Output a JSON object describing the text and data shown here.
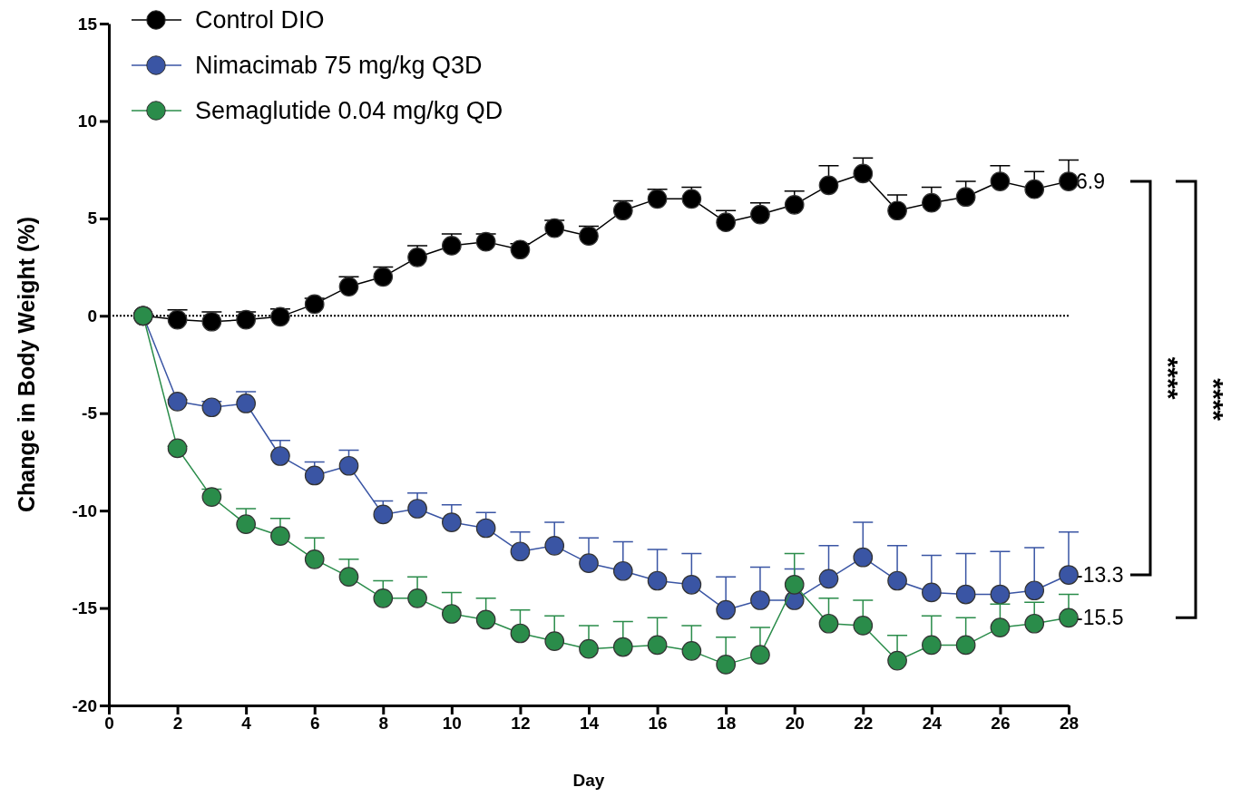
{
  "chart_data": {
    "type": "line",
    "xlabel": "Day",
    "ylabel": "Change in Body Weight  (%)",
    "x": [
      1,
      2,
      3,
      4,
      5,
      6,
      7,
      8,
      9,
      10,
      11,
      12,
      13,
      14,
      15,
      16,
      17,
      18,
      19,
      20,
      21,
      22,
      23,
      24,
      25,
      26,
      27,
      28
    ],
    "xlim": [
      0,
      28
    ],
    "xticks": [
      0,
      2,
      4,
      6,
      8,
      10,
      12,
      14,
      16,
      18,
      20,
      22,
      24,
      26,
      28
    ],
    "ylim": [
      -20,
      15
    ],
    "yticks": [
      -20,
      -15,
      -10,
      -5,
      0,
      5,
      10,
      15
    ],
    "marker": "circle",
    "legend": "top left",
    "grid": false,
    "series": [
      {
        "name": "Control DIO",
        "color": "#000000",
        "values": [
          0,
          -0.2,
          -0.3,
          -0.2,
          -0.05,
          0.6,
          1.5,
          2.0,
          3.0,
          3.6,
          3.8,
          3.4,
          4.5,
          4.1,
          5.4,
          6.0,
          6.0,
          4.8,
          5.2,
          5.7,
          6.7,
          7.3,
          5.4,
          5.8,
          6.1,
          6.9,
          6.5,
          6.9
        ],
        "value_labels": [
          null,
          null,
          null,
          null,
          null,
          null,
          null,
          null,
          null,
          null,
          null,
          null,
          null,
          null,
          null,
          null,
          null,
          null,
          null,
          null,
          null,
          null,
          null,
          null,
          null,
          null,
          null,
          "6.9"
        ],
        "errors": [
          null,
          [
            -0.2,
            0.3
          ],
          [
            -0.3,
            0.2
          ],
          [
            -0.2,
            0.2
          ],
          [
            -0.05,
            0.35
          ],
          [
            0.6,
            0.9
          ],
          [
            1.5,
            2.0
          ],
          [
            2.0,
            2.5
          ],
          [
            3.0,
            3.6
          ],
          [
            3.6,
            4.2
          ],
          [
            3.8,
            4.2
          ],
          [
            3.4,
            3.7
          ],
          [
            4.5,
            4.9
          ],
          [
            4.1,
            4.6
          ],
          [
            5.4,
            5.9
          ],
          [
            6.0,
            6.5
          ],
          [
            6.0,
            6.6
          ],
          [
            4.8,
            5.4
          ],
          [
            5.2,
            5.8
          ],
          [
            5.7,
            6.4
          ],
          [
            6.7,
            7.7
          ],
          [
            7.3,
            8.1
          ],
          [
            5.4,
            6.2
          ],
          [
            5.8,
            6.6
          ],
          [
            6.1,
            6.9
          ],
          [
            6.9,
            7.7
          ],
          [
            6.5,
            7.4
          ],
          [
            6.9,
            8.0
          ]
        ]
      },
      {
        "name": "Nimacimab 75 mg/kg Q3D",
        "color": "#3a55a4",
        "values": [
          0,
          -4.4,
          -4.7,
          -4.5,
          -7.2,
          -8.2,
          -7.7,
          -10.2,
          -9.9,
          -10.6,
          -10.9,
          -12.1,
          -11.8,
          -12.7,
          -13.1,
          -13.6,
          -13.8,
          -15.1,
          -14.6,
          -14.6,
          -13.5,
          -12.4,
          -13.6,
          -14.2,
          -14.3,
          -14.3,
          -14.1,
          -13.3
        ],
        "value_labels": [
          null,
          null,
          null,
          null,
          null,
          null,
          null,
          null,
          null,
          null,
          null,
          null,
          null,
          null,
          null,
          null,
          null,
          null,
          null,
          null,
          null,
          null,
          null,
          null,
          null,
          null,
          null,
          "-13.3"
        ],
        "errors": [
          null,
          [
            -4.4,
            -4.3
          ],
          [
            -4.7,
            -4.4
          ],
          [
            -4.5,
            -3.9
          ],
          [
            -7.2,
            -6.4
          ],
          [
            -8.2,
            -7.5
          ],
          [
            -7.7,
            -6.9
          ],
          [
            -10.2,
            -9.5
          ],
          [
            -9.9,
            -9.1
          ],
          [
            -10.6,
            -9.7
          ],
          [
            -10.9,
            -10.1
          ],
          [
            -12.1,
            -11.1
          ],
          [
            -11.8,
            -10.6
          ],
          [
            -12.7,
            -11.4
          ],
          [
            -13.1,
            -11.6
          ],
          [
            -13.6,
            -12.0
          ],
          [
            -13.8,
            -12.2
          ],
          [
            -15.1,
            -13.4
          ],
          [
            -14.6,
            -12.9
          ],
          [
            -14.6,
            -13.0
          ],
          [
            -13.5,
            -11.8
          ],
          [
            -12.4,
            -10.6
          ],
          [
            -13.6,
            -11.8
          ],
          [
            -14.2,
            -12.3
          ],
          [
            -14.3,
            -12.2
          ],
          [
            -14.3,
            -12.1
          ],
          [
            -14.1,
            -11.9
          ],
          [
            -13.3,
            -11.1
          ]
        ]
      },
      {
        "name": "Semaglutide 0.04 mg/kg QD",
        "color": "#2a8c4a",
        "values": [
          0,
          -6.8,
          -9.3,
          -10.7,
          -11.3,
          -12.5,
          -13.4,
          -14.5,
          -14.5,
          -15.3,
          -15.6,
          -16.3,
          -16.7,
          -17.1,
          -17.0,
          -16.9,
          -17.2,
          -17.9,
          -17.4,
          -13.8,
          -15.8,
          -15.9,
          -17.7,
          -16.9,
          -16.9,
          -16.0,
          -15.8,
          -15.5
        ],
        "value_labels": [
          null,
          null,
          null,
          null,
          null,
          null,
          null,
          null,
          null,
          null,
          null,
          null,
          null,
          null,
          null,
          null,
          null,
          null,
          null,
          null,
          null,
          null,
          null,
          null,
          null,
          null,
          null,
          "-15.5"
        ],
        "errors": [
          null,
          [
            -6.8,
            -6.7
          ],
          [
            -9.3,
            -8.9
          ],
          [
            -10.7,
            -9.9
          ],
          [
            -11.3,
            -10.4
          ],
          [
            -12.5,
            -11.4
          ],
          [
            -13.4,
            -12.5
          ],
          [
            -14.5,
            -13.6
          ],
          [
            -14.5,
            -13.4
          ],
          [
            -15.3,
            -14.2
          ],
          [
            -15.6,
            -14.5
          ],
          [
            -16.3,
            -15.1
          ],
          [
            -16.7,
            -15.4
          ],
          [
            -17.1,
            -15.9
          ],
          [
            -17.0,
            -15.7
          ],
          [
            -16.9,
            -15.5
          ],
          [
            -17.2,
            -15.9
          ],
          [
            -17.9,
            -16.5
          ],
          [
            -17.4,
            -16.0
          ],
          [
            -13.8,
            -12.2
          ],
          [
            -15.8,
            -14.5
          ],
          [
            -15.9,
            -14.6
          ],
          [
            -17.7,
            -16.4
          ],
          [
            -16.9,
            -15.4
          ],
          [
            -16.9,
            -15.5
          ],
          [
            -16.0,
            -14.8
          ],
          [
            -15.8,
            -14.7
          ],
          [
            -15.5,
            -14.3
          ]
        ]
      }
    ],
    "ref_lines": [
      {
        "axis": "y",
        "value": 0,
        "line_style": "dotted",
        "color": "#000000"
      }
    ],
    "annotations": [
      "****",
      "****"
    ]
  }
}
